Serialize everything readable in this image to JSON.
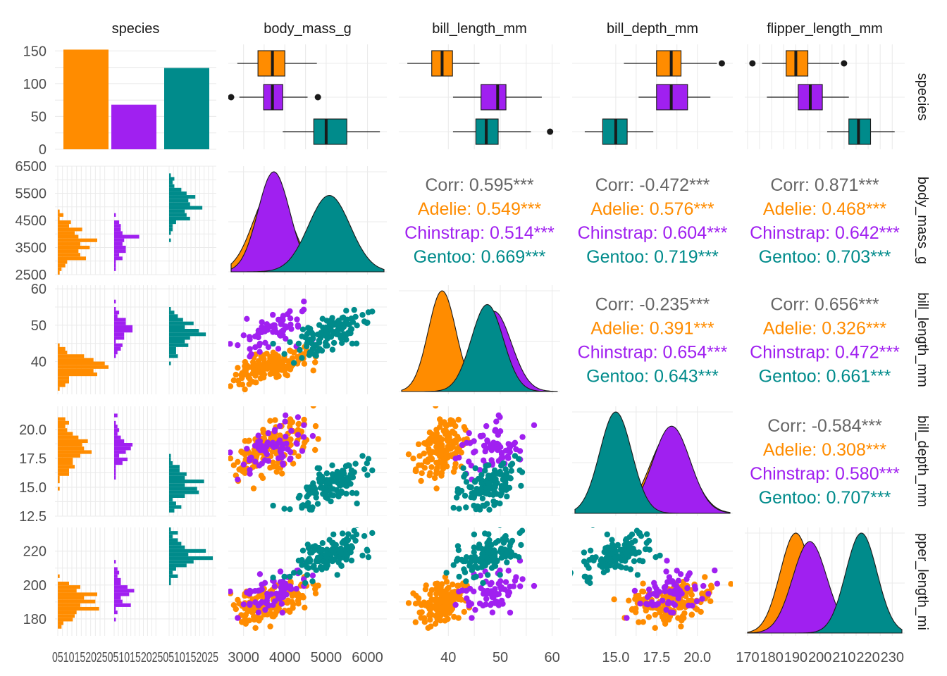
{
  "colors": {
    "Adelie": "#ff8c00",
    "Chinstrap": "#a020f0",
    "Gentoo": "#008b8b",
    "overall": "#666666",
    "grid": "#ebebeb",
    "outline": "#1a1a1a",
    "text": "#1a1a1a",
    "tick": "#4d4d4d"
  },
  "chart_data": {
    "type": "pairs",
    "variables": [
      "species",
      "body_mass_g",
      "bill_length_mm",
      "bill_depth_mm",
      "flipper_length_mm"
    ],
    "column_strips": [
      "species",
      "body_mass_g",
      "bill_length_mm",
      "bill_depth_mm",
      "flipper_length_mm"
    ],
    "row_strips": [
      "species",
      "body_mass_g",
      "bill_length_mm",
      "bill_depth_mm",
      "pper_length_mi"
    ],
    "species_levels": [
      "Adelie",
      "Chinstrap",
      "Gentoo"
    ],
    "grid": true,
    "axes": {
      "species_count": {
        "ticks": [
          0,
          50,
          100,
          150
        ],
        "range": [
          0,
          160
        ]
      },
      "body_mass_g": {
        "ticks": [
          2500,
          3500,
          4500,
          5500,
          6500
        ],
        "range": [
          2500,
          6500
        ],
        "x_ticks": [
          3000,
          4000,
          5000,
          6000
        ],
        "x_range": [
          2700,
          6400
        ]
      },
      "bill_length_mm": {
        "ticks": [
          40,
          50,
          60
        ],
        "range": [
          31,
          61
        ],
        "x_ticks": [
          40,
          50,
          60
        ],
        "x_range": [
          31,
          61
        ]
      },
      "bill_depth_mm": {
        "ticks": [
          12.5,
          15.0,
          17.5,
          20.0
        ],
        "tick_labels": [
          "12.5",
          "15.0",
          "17.5",
          "20.0"
        ],
        "range": [
          12.5,
          22
        ],
        "x_ticks": [
          15.0,
          17.5,
          20.0
        ],
        "x_tick_labels": [
          "15.0",
          "17.5",
          "20.0"
        ],
        "x_range": [
          12.5,
          22
        ]
      },
      "flipper_length_mm": {
        "ticks": [
          180,
          200,
          220
        ],
        "range": [
          170,
          234
        ],
        "x_ticks": [
          170,
          180,
          190,
          200,
          210,
          220,
          230
        ],
        "x_range": [
          170,
          234
        ]
      },
      "histogram_count": {
        "ticks": [
          0,
          5,
          10,
          15,
          20,
          25
        ],
        "tick_labels": [
          "05",
          "1",
          "0",
          "1",
          "5",
          "2",
          "0",
          "2",
          "5"
        ],
        "x_tick_text": [
          "051015202505101520250510152025"
        ],
        "range": [
          0,
          27
        ]
      }
    },
    "bar_counts": {
      "Adelie": 152,
      "Chinstrap": 68,
      "Gentoo": 124
    },
    "boxplots": {
      "body_mass_g": {
        "Adelie": {
          "min": 2850,
          "q1": 3350,
          "median": 3700,
          "q3": 4000,
          "max": 4775,
          "outliers": []
        },
        "Chinstrap": {
          "min": 2900,
          "q1": 3487,
          "median": 3700,
          "q3": 3950,
          "max": 4550,
          "outliers": [
            2700,
            4800
          ]
        },
        "Gentoo": {
          "min": 3950,
          "q1": 4700,
          "median": 5000,
          "q3": 5500,
          "max": 6300,
          "outliers": []
        }
      },
      "bill_length_mm": {
        "Adelie": {
          "min": 32.1,
          "q1": 36.8,
          "median": 38.8,
          "q3": 40.8,
          "max": 46.0,
          "outliers": []
        },
        "Chinstrap": {
          "min": 40.9,
          "q1": 46.3,
          "median": 49.5,
          "q3": 51.1,
          "max": 58.0,
          "outliers": []
        },
        "Gentoo": {
          "min": 40.9,
          "q1": 45.3,
          "median": 47.3,
          "q3": 49.6,
          "max": 55.9,
          "outliers": [
            59.6
          ]
        }
      },
      "bill_depth_mm": {
        "Adelie": {
          "min": 15.5,
          "q1": 17.5,
          "median": 18.4,
          "q3": 19.0,
          "max": 21.2,
          "outliers": [
            21.5
          ]
        },
        "Chinstrap": {
          "min": 16.4,
          "q1": 17.5,
          "median": 18.4,
          "q3": 19.4,
          "max": 20.8,
          "outliers": []
        },
        "Gentoo": {
          "min": 13.1,
          "q1": 14.2,
          "median": 15.0,
          "q3": 15.7,
          "max": 17.3,
          "outliers": []
        }
      },
      "flipper_length_mm": {
        "Adelie": {
          "min": 176,
          "q1": 186,
          "median": 190,
          "q3": 195,
          "max": 208,
          "outliers": [
            172,
            210
          ]
        },
        "Chinstrap": {
          "min": 178,
          "q1": 191,
          "median": 196,
          "q3": 201,
          "max": 212,
          "outliers": []
        },
        "Gentoo": {
          "min": 203,
          "q1": 212,
          "median": 216,
          "q3": 221,
          "max": 231,
          "outliers": []
        }
      }
    },
    "densities": {
      "body_mass_g": {
        "Adelie": {
          "mean": 3700,
          "sd": 460
        },
        "Chinstrap": {
          "mean": 3733,
          "sd": 385
        },
        "Gentoo": {
          "mean": 5076,
          "sd": 504
        }
      },
      "bill_length_mm": {
        "Adelie": {
          "mean": 38.8,
          "sd": 2.66
        },
        "Chinstrap": {
          "mean": 48.8,
          "sd": 3.34
        },
        "Gentoo": {
          "mean": 47.5,
          "sd": 3.08
        }
      },
      "bill_depth_mm": {
        "Adelie": {
          "mean": 18.35,
          "sd": 1.22
        },
        "Chinstrap": {
          "mean": 18.42,
          "sd": 1.14
        },
        "Gentoo": {
          "mean": 15.0,
          "sd": 0.98
        }
      },
      "flipper_length_mm": {
        "Adelie": {
          "mean": 190,
          "sd": 6.5
        },
        "Chinstrap": {
          "mean": 195.8,
          "sd": 7.1
        },
        "Gentoo": {
          "mean": 217.2,
          "sd": 6.5
        }
      }
    },
    "correlations": [
      {
        "row": "body_mass_g",
        "col": "bill_length_mm",
        "lines": [
          "Corr: 0.595***",
          "Adelie: 0.549***",
          "Chinstrap: 0.514***",
          "Gentoo: 0.669***"
        ]
      },
      {
        "row": "body_mass_g",
        "col": "bill_depth_mm",
        "lines": [
          "Corr: -0.472***",
          "Adelie: 0.576***",
          "Chinstrap: 0.604***",
          "Gentoo: 0.719***"
        ]
      },
      {
        "row": "body_mass_g",
        "col": "flipper_length_mm",
        "lines": [
          "Corr: 0.871***",
          "Adelie: 0.468***",
          "Chinstrap: 0.642***",
          "Gentoo: 0.703***"
        ]
      },
      {
        "row": "bill_length_mm",
        "col": "bill_depth_mm",
        "lines": [
          "Corr: -0.235***",
          "Adelie: 0.391***",
          "Chinstrap: 0.654***",
          "Gentoo: 0.643***"
        ]
      },
      {
        "row": "bill_length_mm",
        "col": "flipper_length_mm",
        "lines": [
          "Corr: 0.656***",
          "Adelie: 0.326***",
          "Chinstrap: 0.472***",
          "Gentoo: 0.661***"
        ]
      },
      {
        "row": "bill_depth_mm",
        "col": "flipper_length_mm",
        "lines": [
          "Corr: -0.584***",
          "Adelie: 0.308***",
          "Chinstrap: 0.580***",
          "Gentoo: 0.707***"
        ]
      }
    ],
    "species_means": {
      "Adelie": {
        "body_mass_g": 3700,
        "bill_length_mm": 38.8,
        "bill_depth_mm": 18.35,
        "flipper_length_mm": 190
      },
      "Chinstrap": {
        "body_mass_g": 3733,
        "bill_length_mm": 48.8,
        "bill_depth_mm": 18.42,
        "flipper_length_mm": 195.8
      },
      "Gentoo": {
        "body_mass_g": 5076,
        "bill_length_mm": 47.5,
        "bill_depth_mm": 15.0,
        "flipper_length_mm": 217.2
      }
    },
    "species_sds": {
      "Adelie": {
        "body_mass_g": 460,
        "bill_length_mm": 2.66,
        "bill_depth_mm": 1.22,
        "flipper_length_mm": 6.5
      },
      "Chinstrap": {
        "body_mass_g": 385,
        "bill_length_mm": 3.34,
        "bill_depth_mm": 1.14,
        "flipper_length_mm": 7.1
      },
      "Gentoo": {
        "body_mass_g": 504,
        "bill_length_mm": 3.08,
        "bill_depth_mm": 0.98,
        "flipper_length_mm": 6.5
      }
    },
    "species_correlations": {
      "Adelie": {
        "body_mass_g|bill_length_mm": 0.549,
        "body_mass_g|bill_depth_mm": 0.576,
        "body_mass_g|flipper_length_mm": 0.468,
        "bill_length_mm|bill_depth_mm": 0.391,
        "bill_length_mm|flipper_length_mm": 0.326,
        "bill_depth_mm|flipper_length_mm": 0.308
      },
      "Chinstrap": {
        "body_mass_g|bill_length_mm": 0.514,
        "body_mass_g|bill_depth_mm": 0.604,
        "body_mass_g|flipper_length_mm": 0.642,
        "bill_length_mm|bill_depth_mm": 0.654,
        "bill_length_mm|flipper_length_mm": 0.472,
        "bill_depth_mm|flipper_length_mm": 0.58
      },
      "Gentoo": {
        "body_mass_g|bill_length_mm": 0.669,
        "body_mass_g|bill_depth_mm": 0.719,
        "body_mass_g|flipper_length_mm": 0.703,
        "bill_length_mm|bill_depth_mm": 0.643,
        "bill_length_mm|flipper_length_mm": 0.661,
        "bill_depth_mm|flipper_length_mm": 0.707
      }
    }
  }
}
